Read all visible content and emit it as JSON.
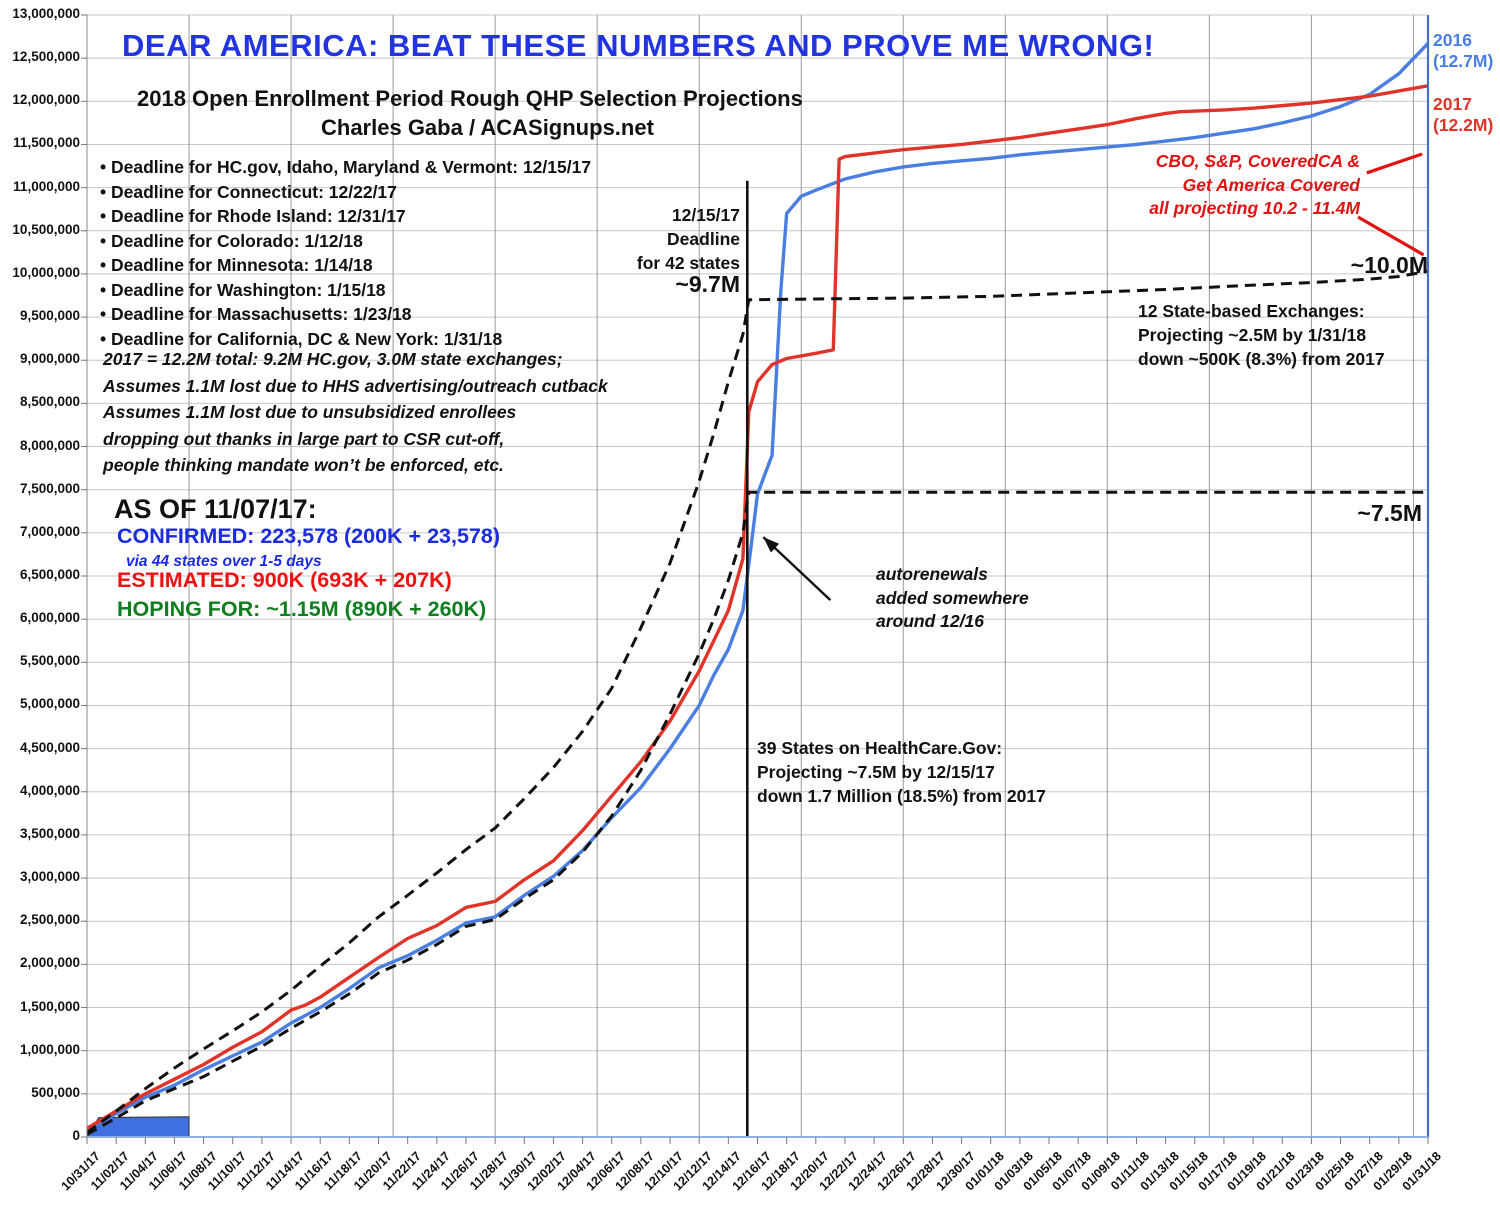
{
  "header": {
    "title": "DEAR AMERICA: BEAT THESE NUMBERS AND PROVE ME WRONG!",
    "subtitle1": "2018 Open Enrollment Period Rough QHP Selection Projections",
    "subtitle2": "Charles Gaba / ACASignups.net"
  },
  "deadlines": [
    "• Deadline for HC.gov, Idaho, Maryland & Vermont: 12/15/17",
    "• Deadline for Connecticut: 12/22/17",
    "• Deadline for Rhode Island: 12/31/17",
    "• Deadline for Colorado: 1/12/18",
    "• Deadline for Minnesota: 1/14/18",
    "• Deadline for Washington: 1/15/18",
    "• Deadline for Massachusetts: 1/23/18",
    "• Deadline for California, DC & New York: 1/31/18"
  ],
  "notes": [
    "2017 = 12.2M total: 9.2M HC.gov, 3.0M state exchanges;",
    "Assumes 1.1M lost due to HHS advertising/outreach cutback",
    "Assumes 1.1M lost due to unsubsidized enrollees",
    "  dropping out thanks in large part to CSR cut-off,",
    "  people thinking mandate won’t be enforced, etc."
  ],
  "as_of": {
    "heading": "AS OF 11/07/17:",
    "confirmed": "CONFIRMED: 223,578 (200K + 23,578)",
    "via": "via 44 states over 1-5 days",
    "estimated": "ESTIMATED: 900K (693K + 207K)",
    "hoping": "HOPING FOR: ~1.15M (890K + 260K)"
  },
  "annotations": {
    "deadline42": [
      "12/15/17",
      "Deadline",
      "for 42 states"
    ],
    "label_9_7m": "~9.7M",
    "label_10_0m": "~10.0M",
    "label_7_5m": "~7.5M",
    "cbo": [
      "CBO, S&P, CoveredCA &",
      "Get America Covered",
      "all projecting 10.2 - 11.4M"
    ],
    "state_exchanges": [
      "12 State-based Exchanges:",
      "Projecting ~2.5M by 1/31/18",
      "down ~500K (8.3%) from 2017"
    ],
    "autorenewals": [
      "autorenewals",
      "added somewhere",
      "around 12/16"
    ],
    "hcgov": [
      "39 States on HealthCare.Gov:",
      "Projecting ~7.5M by 12/15/17",
      "down 1.7 Million (18.5%) from 2017"
    ],
    "series_2016": [
      "2016",
      "(12.7M)"
    ],
    "series_2017": [
      "2017",
      "(12.2M)"
    ]
  },
  "colors": {
    "title_blue": "#2233e0",
    "line_2016_blue": "#4a7ee0",
    "line_2017_red": "#e0332a",
    "projection_black": "#111111",
    "confirmed_blue": "#1b2be0",
    "estimated_red": "#ee1111",
    "hoping_green": "#0f7e1e",
    "callout_red": "#e01212",
    "grid_gray": "#c6c6c6",
    "axis_blue": "#4472c4"
  },
  "chart_data": {
    "type": "line",
    "title": "2018 Open Enrollment Period Rough QHP Selection Projections",
    "xlabel": "",
    "ylabel": "",
    "ylim": [
      0,
      13000000
    ],
    "grid": true,
    "legend_position": "end-of-line labels",
    "x_unit": "days since 10/31/17",
    "x_labels": [
      "10/31/17",
      "11/02/17",
      "11/04/17",
      "11/06/17",
      "11/08/17",
      "11/10/17",
      "11/12/17",
      "11/14/17",
      "11/16/17",
      "11/18/17",
      "11/20/17",
      "11/22/17",
      "11/24/17",
      "11/26/17",
      "11/28/17",
      "11/30/17",
      "12/02/17",
      "12/04/17",
      "12/06/17",
      "12/08/17",
      "12/10/17",
      "12/12/17",
      "12/14/17",
      "12/16/17",
      "12/18/17",
      "12/20/17",
      "12/22/17",
      "12/24/17",
      "12/26/17",
      "12/28/17",
      "12/30/17",
      "01/01/18",
      "01/03/18",
      "01/05/18",
      "01/07/18",
      "01/09/18",
      "01/11/18",
      "01/13/18",
      "01/15/18",
      "01/17/18",
      "01/19/18",
      "01/21/18",
      "01/23/18",
      "01/25/18",
      "01/27/18",
      "01/29/18",
      "01/31/18"
    ],
    "y_tick_labels": [
      "0",
      "500,000",
      "1,000,000",
      "1,500,000",
      "2,000,000",
      "2,500,000",
      "3,000,000",
      "3,500,000",
      "4,000,000",
      "4,500,000",
      "5,000,000",
      "5,500,000",
      "6,000,000",
      "6,500,000",
      "7,000,000",
      "7,500,000",
      "8,000,000",
      "8,500,000",
      "9,000,000",
      "9,500,000",
      "10,000,000",
      "10,500,000",
      "11,000,000",
      "11,500,000",
      "12,000,000",
      "12,500,000",
      "13,000,000"
    ],
    "values_unit": "millions of QHP selections",
    "series": [
      {
        "name": "2016 actual (ends 12.7M)",
        "color": "#4a7ee0",
        "style": "solid",
        "width": 3.4,
        "points": [
          [
            0,
            0.08
          ],
          [
            2,
            0.27
          ],
          [
            4,
            0.46
          ],
          [
            6,
            0.6
          ],
          [
            8,
            0.78
          ],
          [
            10,
            0.94
          ],
          [
            12,
            1.1
          ],
          [
            14,
            1.32
          ],
          [
            16,
            1.5
          ],
          [
            18,
            1.72
          ],
          [
            20,
            1.96
          ],
          [
            22,
            2.1
          ],
          [
            24,
            2.28
          ],
          [
            26,
            2.48
          ],
          [
            28,
            2.55
          ],
          [
            30,
            2.8
          ],
          [
            32,
            3.02
          ],
          [
            34,
            3.32
          ],
          [
            36,
            3.7
          ],
          [
            38,
            4.05
          ],
          [
            40,
            4.5
          ],
          [
            42,
            5.0
          ],
          [
            43,
            5.35
          ],
          [
            44,
            5.65
          ],
          [
            45,
            6.1
          ],
          [
            45.6,
            6.9
          ],
          [
            46,
            7.45
          ],
          [
            47,
            7.9
          ],
          [
            47.6,
            9.8
          ],
          [
            48,
            10.7
          ],
          [
            49,
            10.9
          ],
          [
            50,
            10.97
          ],
          [
            52,
            11.1
          ],
          [
            54,
            11.18
          ],
          [
            56,
            11.24
          ],
          [
            58,
            11.28
          ],
          [
            60,
            11.31
          ],
          [
            62,
            11.34
          ],
          [
            64,
            11.38
          ],
          [
            66,
            11.41
          ],
          [
            68,
            11.44
          ],
          [
            70,
            11.47
          ],
          [
            72,
            11.5
          ],
          [
            74,
            11.54
          ],
          [
            76,
            11.58
          ],
          [
            78,
            11.63
          ],
          [
            80,
            11.68
          ],
          [
            82,
            11.75
          ],
          [
            84,
            11.83
          ],
          [
            86,
            11.94
          ],
          [
            88,
            12.08
          ],
          [
            90,
            12.32
          ],
          [
            92,
            12.67
          ]
        ]
      },
      {
        "name": "2017 actual (ends 12.2M)",
        "color": "#e0332a",
        "style": "solid",
        "width": 3.4,
        "points": [
          [
            0,
            0.1
          ],
          [
            2,
            0.3
          ],
          [
            4,
            0.5
          ],
          [
            6,
            0.67
          ],
          [
            8,
            0.84
          ],
          [
            10,
            1.04
          ],
          [
            12,
            1.22
          ],
          [
            14,
            1.47
          ],
          [
            15,
            1.53
          ],
          [
            16,
            1.62
          ],
          [
            18,
            1.85
          ],
          [
            20,
            2.08
          ],
          [
            22,
            2.3
          ],
          [
            24,
            2.45
          ],
          [
            26,
            2.66
          ],
          [
            28,
            2.73
          ],
          [
            30,
            2.98
          ],
          [
            32,
            3.2
          ],
          [
            34,
            3.55
          ],
          [
            36,
            3.95
          ],
          [
            38,
            4.35
          ],
          [
            40,
            4.82
          ],
          [
            42,
            5.4
          ],
          [
            44,
            6.1
          ],
          [
            45,
            6.7
          ],
          [
            45.4,
            8.4
          ],
          [
            46,
            8.75
          ],
          [
            47,
            8.95
          ],
          [
            48,
            9.02
          ],
          [
            50,
            9.08
          ],
          [
            51.2,
            9.12
          ],
          [
            51.6,
            11.33
          ],
          [
            52,
            11.36
          ],
          [
            54,
            11.4
          ],
          [
            56,
            11.44
          ],
          [
            58,
            11.47
          ],
          [
            60,
            11.5
          ],
          [
            62,
            11.54
          ],
          [
            64,
            11.58
          ],
          [
            66,
            11.63
          ],
          [
            68,
            11.68
          ],
          [
            70,
            11.73
          ],
          [
            72,
            11.8
          ],
          [
            74,
            11.86
          ],
          [
            75,
            11.88
          ],
          [
            78,
            11.9
          ],
          [
            80,
            11.92
          ],
          [
            82,
            11.95
          ],
          [
            84,
            11.98
          ],
          [
            86,
            12.02
          ],
          [
            88,
            12.06
          ],
          [
            90,
            12.12
          ],
          [
            92,
            12.18
          ]
        ]
      },
      {
        "name": "2018 projection, 42 states: ~9.7M by 12/15/17, ~10.0M by 1/31/18",
        "color": "#111111",
        "style": "dashed",
        "width": 3,
        "points": [
          [
            0,
            0.05
          ],
          [
            2,
            0.3
          ],
          [
            4,
            0.56
          ],
          [
            6,
            0.8
          ],
          [
            8,
            1.02
          ],
          [
            10,
            1.23
          ],
          [
            12,
            1.45
          ],
          [
            14,
            1.7
          ],
          [
            16,
            1.98
          ],
          [
            18,
            2.25
          ],
          [
            20,
            2.55
          ],
          [
            22,
            2.8
          ],
          [
            24,
            3.06
          ],
          [
            26,
            3.33
          ],
          [
            28,
            3.58
          ],
          [
            30,
            3.92
          ],
          [
            32,
            4.28
          ],
          [
            34,
            4.7
          ],
          [
            36,
            5.2
          ],
          [
            38,
            5.9
          ],
          [
            40,
            6.65
          ],
          [
            42,
            7.6
          ],
          [
            43,
            8.15
          ],
          [
            44,
            8.75
          ],
          [
            45,
            9.3
          ],
          [
            45.4,
            9.7
          ],
          [
            50,
            9.71
          ],
          [
            56,
            9.72
          ],
          [
            62,
            9.74
          ],
          [
            68,
            9.78
          ],
          [
            74,
            9.82
          ],
          [
            80,
            9.87
          ],
          [
            84,
            9.9
          ],
          [
            88,
            9.94
          ],
          [
            90,
            9.97
          ],
          [
            92,
            10.03
          ]
        ]
      },
      {
        "name": "2018 projection, HealthCare.gov 39 states: ~7.5M by 12/15/17",
        "color": "#111111",
        "style": "dashed",
        "width": 3,
        "points": [
          [
            0,
            0.03
          ],
          [
            2,
            0.22
          ],
          [
            4,
            0.42
          ],
          [
            6,
            0.56
          ],
          [
            8,
            0.7
          ],
          [
            10,
            0.88
          ],
          [
            12,
            1.05
          ],
          [
            14,
            1.26
          ],
          [
            16,
            1.45
          ],
          [
            18,
            1.66
          ],
          [
            20,
            1.9
          ],
          [
            22,
            2.05
          ],
          [
            24,
            2.23
          ],
          [
            26,
            2.44
          ],
          [
            28,
            2.52
          ],
          [
            30,
            2.76
          ],
          [
            32,
            2.98
          ],
          [
            34,
            3.3
          ],
          [
            36,
            3.72
          ],
          [
            38,
            4.25
          ],
          [
            40,
            4.9
          ],
          [
            42,
            5.6
          ],
          [
            43,
            6.0
          ],
          [
            44,
            6.45
          ],
          [
            45,
            7.0
          ],
          [
            45.4,
            7.47
          ],
          [
            92,
            7.47
          ]
        ]
      }
    ],
    "confirmed_area": {
      "name": "confirmed 223,578 through 11/07",
      "color": "#3f6fe0",
      "points": [
        [
          0,
          0
        ],
        [
          0.8,
          0.225
        ],
        [
          7,
          0.235
        ],
        [
          7,
          0
        ]
      ]
    },
    "deadline_vline": {
      "day": 45.3,
      "top": 11.08,
      "label": "12/15/17 Deadline for 42 states"
    },
    "arrow": {
      "tail": [
        51.0,
        6.22
      ],
      "head": [
        46.4,
        6.95
      ]
    },
    "callouts": [
      [
        [
          87.8,
          11.17
        ],
        [
          91.6,
          11.39
        ]
      ],
      [
        [
          87.2,
          10.66
        ],
        [
          91.7,
          10.22
        ]
      ]
    ]
  }
}
